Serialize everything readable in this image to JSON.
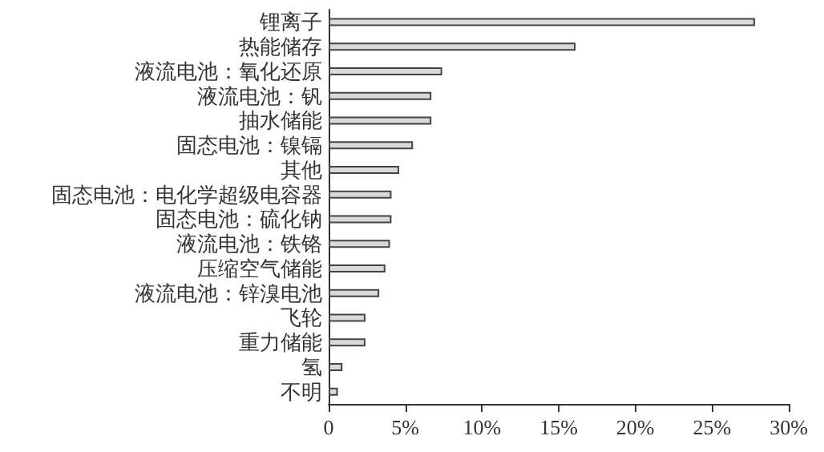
{
  "chart_data": {
    "type": "bar",
    "orientation": "horizontal",
    "categories": [
      "锂离子",
      "热能储存",
      "液流电池：氧化还原",
      "液流电池：钒",
      "抽水储能",
      "固态电池：镍镉",
      "其他",
      "固态电池：电化学超级电容器",
      "固态电池：硫化钠",
      "液流电池：铁铬",
      "压缩空气储能",
      "液流电池：锌溴电池",
      "飞轮",
      "重力储能",
      "氢",
      "不明"
    ],
    "values": [
      27.8,
      16.1,
      7.4,
      6.7,
      6.7,
      5.5,
      4.6,
      4.1,
      4.1,
      4.0,
      3.7,
      3.3,
      2.4,
      2.4,
      0.9,
      0.6
    ],
    "color": "#d9d9d9",
    "xlim": [
      0,
      30
    ],
    "xticks": [
      {
        "value": 0,
        "label": "0"
      },
      {
        "value": 5,
        "label": "5%"
      },
      {
        "value": 10,
        "label": "10%"
      },
      {
        "value": 15,
        "label": "15%"
      },
      {
        "value": 20,
        "label": "20%"
      },
      {
        "value": 25,
        "label": "25%"
      },
      {
        "value": 30,
        "label": "30%"
      }
    ],
    "grid": false
  }
}
